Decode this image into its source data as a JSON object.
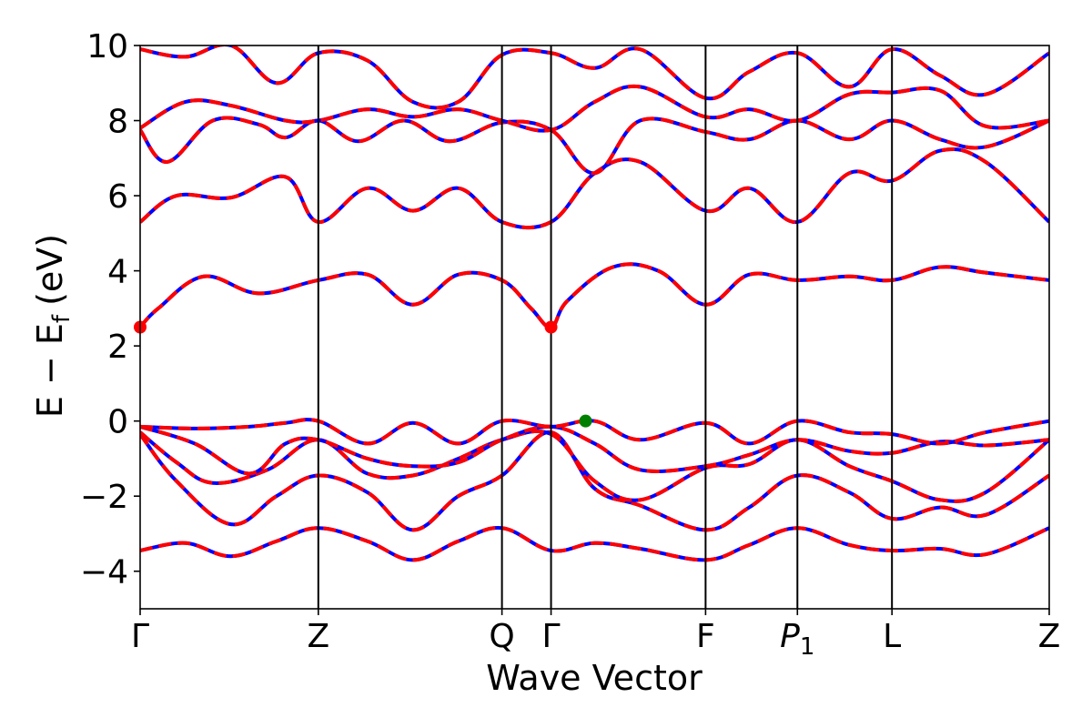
{
  "chart_data": {
    "type": "line",
    "xlabel": "Wave Vector",
    "ylabel": "E − E",
    "ylabel_sub": "f",
    "ylabel_unit": "(eV)",
    "ylim": [
      -5,
      10
    ],
    "xlim": [
      0,
      1
    ],
    "yticks": [
      {
        "value": -4,
        "label": "−4"
      },
      {
        "value": -2,
        "label": "−2"
      },
      {
        "value": 0,
        "label": "0"
      },
      {
        "value": 2,
        "label": "2"
      },
      {
        "value": 4,
        "label": "4"
      },
      {
        "value": 6,
        "label": "6"
      },
      {
        "value": 8,
        "label": "8"
      },
      {
        "value": 10,
        "label": "10"
      }
    ],
    "kpoints": [
      {
        "pos": 0.0,
        "label": "Γ",
        "sub": ""
      },
      {
        "pos": 0.196,
        "label": "Z",
        "sub": ""
      },
      {
        "pos": 0.398,
        "label": "Q",
        "sub": ""
      },
      {
        "pos": 0.452,
        "label": "Γ",
        "sub": ""
      },
      {
        "pos": 0.622,
        "label": "F",
        "sub": ""
      },
      {
        "pos": 0.723,
        "label": "P",
        "sub": "1"
      },
      {
        "pos": 0.827,
        "label": "L",
        "sub": ""
      },
      {
        "pos": 1.0,
        "label": "Z",
        "sub": ""
      }
    ],
    "series_style": {
      "solid_color": "#0000ff",
      "dashed_color": "#ff0000"
    },
    "bands": [
      {
        "name": "",
        "x": [
          0,
          0.05,
          0.1,
          0.15,
          0.196,
          0.25,
          0.3,
          0.35,
          0.398,
          0.452,
          0.5,
          0.55,
          0.622,
          0.67,
          0.723,
          0.78,
          0.827,
          0.88,
          0.93,
          1.0
        ],
        "y": [
          -3.45,
          -3.25,
          -3.6,
          -3.2,
          -2.85,
          -3.2,
          -3.7,
          -3.2,
          -2.85,
          -3.45,
          -3.25,
          -3.4,
          -3.7,
          -3.3,
          -2.85,
          -3.3,
          -3.45,
          -3.4,
          -3.55,
          -2.85
        ]
      },
      {
        "name": "",
        "x": [
          0,
          0.04,
          0.1,
          0.15,
          0.196,
          0.25,
          0.3,
          0.35,
          0.398,
          0.452,
          0.5,
          0.55,
          0.622,
          0.67,
          0.723,
          0.78,
          0.827,
          0.88,
          0.93,
          1.0
        ],
        "y": [
          -0.35,
          -1.6,
          -2.75,
          -2.0,
          -1.45,
          -1.9,
          -2.9,
          -2.0,
          -1.45,
          -0.3,
          -1.8,
          -2.25,
          -2.9,
          -2.3,
          -1.45,
          -1.9,
          -2.6,
          -2.3,
          -2.5,
          -1.45
        ]
      },
      {
        "name": "",
        "x": [
          0,
          0.04,
          0.08,
          0.14,
          0.196,
          0.25,
          0.3,
          0.35,
          0.398,
          0.452,
          0.5,
          0.55,
          0.622,
          0.67,
          0.723,
          0.78,
          0.827,
          0.88,
          0.93,
          1.0
        ],
        "y": [
          -0.3,
          -1.1,
          -1.65,
          -1.3,
          -0.5,
          -1.4,
          -1.45,
          -1.0,
          -0.5,
          -0.35,
          -1.6,
          -2.1,
          -1.25,
          -1.15,
          -0.5,
          -1.2,
          -1.6,
          -2.1,
          -1.9,
          -0.5
        ]
      },
      {
        "name": "",
        "x": [
          0,
          0.06,
          0.12,
          0.16,
          0.196,
          0.25,
          0.3,
          0.35,
          0.398,
          0.452,
          0.5,
          0.55,
          0.622,
          0.67,
          0.723,
          0.78,
          0.827,
          0.88,
          0.93,
          1.0
        ],
        "y": [
          -0.15,
          -0.6,
          -1.4,
          -0.6,
          -0.5,
          -1.0,
          -1.2,
          -1.1,
          -0.5,
          -0.15,
          -0.6,
          -1.3,
          -1.2,
          -0.9,
          -0.5,
          -0.8,
          -0.85,
          -0.55,
          -0.65,
          -0.5
        ]
      },
      {
        "name": "",
        "x": [
          0,
          0.06,
          0.12,
          0.16,
          0.196,
          0.25,
          0.3,
          0.35,
          0.398,
          0.452,
          0.5,
          0.55,
          0.622,
          0.67,
          0.723,
          0.78,
          0.827,
          0.88,
          0.93,
          1.0
        ],
        "y": [
          -0.15,
          -0.2,
          -0.15,
          -0.05,
          0.0,
          -0.6,
          -0.05,
          -0.6,
          0.0,
          -0.15,
          0.0,
          -0.5,
          -0.05,
          -0.6,
          0.0,
          -0.3,
          -0.35,
          -0.6,
          -0.3,
          0.0
        ]
      },
      {
        "name": "",
        "x": [
          0,
          0.02,
          0.07,
          0.13,
          0.196,
          0.25,
          0.3,
          0.35,
          0.398,
          0.43,
          0.452,
          0.47,
          0.52,
          0.57,
          0.622,
          0.67,
          0.723,
          0.78,
          0.827,
          0.88,
          0.93,
          1.0
        ],
        "y": [
          2.5,
          3.0,
          3.85,
          3.4,
          3.75,
          3.9,
          3.1,
          3.9,
          3.75,
          3.0,
          2.5,
          3.2,
          4.1,
          4.0,
          3.1,
          3.9,
          3.75,
          3.85,
          3.75,
          4.1,
          3.95,
          3.75
        ]
      },
      {
        "name": "",
        "x": [
          0,
          0.04,
          0.1,
          0.16,
          0.196,
          0.25,
          0.3,
          0.35,
          0.398,
          0.452,
          0.5,
          0.55,
          0.622,
          0.67,
          0.723,
          0.78,
          0.827,
          0.88,
          0.93,
          1.0
        ],
        "y": [
          5.3,
          6.0,
          5.95,
          6.5,
          5.3,
          6.2,
          5.6,
          6.2,
          5.3,
          5.3,
          6.6,
          6.9,
          5.6,
          6.2,
          5.3,
          6.6,
          6.4,
          7.2,
          6.9,
          5.3
        ]
      },
      {
        "name": "",
        "x": [
          0,
          0.03,
          0.08,
          0.13,
          0.16,
          0.196,
          0.24,
          0.29,
          0.34,
          0.398,
          0.452,
          0.5,
          0.55,
          0.622,
          0.67,
          0.723,
          0.78,
          0.827,
          0.88,
          0.93,
          1.0
        ],
        "y": [
          7.75,
          6.9,
          8.0,
          7.9,
          7.55,
          8.0,
          7.45,
          8.0,
          7.45,
          7.95,
          7.75,
          6.6,
          8.0,
          7.7,
          7.5,
          8.0,
          7.5,
          8.0,
          7.5,
          7.3,
          8.0
        ]
      },
      {
        "name": "",
        "x": [
          0,
          0.05,
          0.1,
          0.16,
          0.196,
          0.25,
          0.3,
          0.35,
          0.398,
          0.452,
          0.5,
          0.55,
          0.622,
          0.67,
          0.723,
          0.78,
          0.827,
          0.88,
          0.93,
          1.0
        ],
        "y": [
          7.8,
          8.5,
          8.4,
          8.0,
          8.0,
          8.3,
          8.1,
          8.3,
          8.0,
          7.75,
          8.5,
          8.9,
          8.1,
          8.3,
          8.0,
          8.7,
          8.75,
          8.8,
          7.85,
          8.0
        ]
      },
      {
        "name": "",
        "x": [
          0,
          0.05,
          0.1,
          0.15,
          0.196,
          0.25,
          0.3,
          0.35,
          0.398,
          0.452,
          0.5,
          0.55,
          0.622,
          0.67,
          0.723,
          0.78,
          0.827,
          0.88,
          0.93,
          1.0
        ],
        "y": [
          9.9,
          9.7,
          10.0,
          9.0,
          9.8,
          9.6,
          8.5,
          8.5,
          9.75,
          9.8,
          9.4,
          9.9,
          8.6,
          9.3,
          9.8,
          8.9,
          9.9,
          9.2,
          8.7,
          9.8
        ]
      }
    ],
    "cbm_marker": {
      "x": [
        0.0,
        0.452
      ],
      "y": [
        2.5,
        2.5
      ],
      "color": "#ff0000"
    },
    "vbm_marker": {
      "x": 0.49,
      "y": 0.0,
      "color": "#008000"
    }
  }
}
